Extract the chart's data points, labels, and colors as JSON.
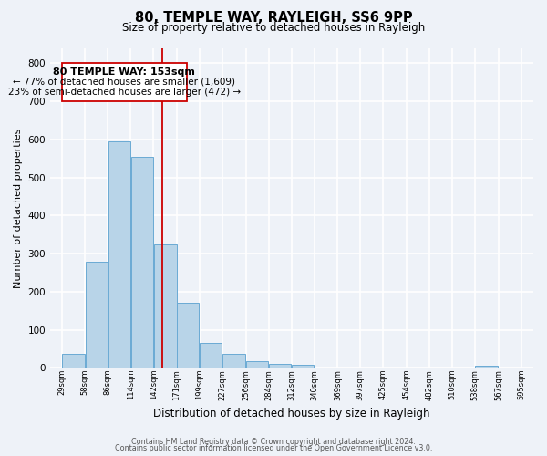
{
  "title": "80, TEMPLE WAY, RAYLEIGH, SS6 9PP",
  "subtitle": "Size of property relative to detached houses in Rayleigh",
  "xlabel": "Distribution of detached houses by size in Rayleigh",
  "ylabel": "Number of detached properties",
  "bar_left_edges": [
    29,
    58,
    86,
    114,
    142,
    171,
    199,
    227,
    256,
    284,
    312,
    340,
    369,
    397,
    425,
    454,
    482,
    510,
    538,
    567
  ],
  "bar_widths": [
    29,
    28,
    28,
    28,
    29,
    28,
    28,
    29,
    28,
    28,
    28,
    29,
    28,
    28,
    29,
    28,
    28,
    28,
    29,
    28
  ],
  "bar_heights": [
    38,
    278,
    594,
    553,
    325,
    170,
    65,
    38,
    18,
    10,
    8,
    0,
    0,
    0,
    0,
    0,
    0,
    0,
    5,
    0
  ],
  "bar_color": "#b8d4e8",
  "bar_edge_color": "#6aaad4",
  "property_line_x": 153,
  "property_line_color": "#cc0000",
  "annotation_title": "80 TEMPLE WAY: 153sqm",
  "annotation_line1": "← 77% of detached houses are smaller (1,609)",
  "annotation_line2": "23% of semi-detached houses are larger (472) →",
  "annotation_box_color": "#cc0000",
  "tick_labels": [
    "29sqm",
    "58sqm",
    "86sqm",
    "114sqm",
    "142sqm",
    "171sqm",
    "199sqm",
    "227sqm",
    "256sqm",
    "284sqm",
    "312sqm",
    "340sqm",
    "369sqm",
    "397sqm",
    "425sqm",
    "454sqm",
    "482sqm",
    "510sqm",
    "538sqm",
    "567sqm",
    "595sqm"
  ],
  "tick_positions": [
    29,
    58,
    86,
    114,
    142,
    171,
    199,
    227,
    256,
    284,
    312,
    340,
    369,
    397,
    425,
    454,
    482,
    510,
    538,
    567,
    595
  ],
  "ylim": [
    0,
    840
  ],
  "xlim": [
    15,
    610
  ],
  "yticks": [
    0,
    100,
    200,
    300,
    400,
    500,
    600,
    700,
    800
  ],
  "footer_line1": "Contains HM Land Registry data © Crown copyright and database right 2024.",
  "footer_line2": "Contains public sector information licensed under the Open Government Licence v3.0.",
  "background_color": "#eef2f8",
  "grid_color": "#ffffff"
}
